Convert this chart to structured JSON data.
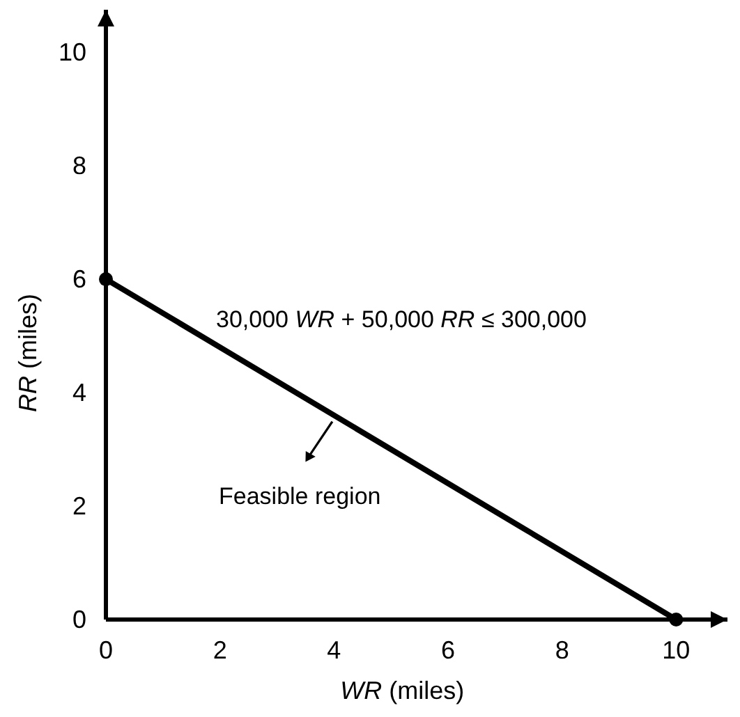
{
  "chart_data": {
    "type": "line",
    "xlabel": "WR (miles)",
    "ylabel": "RR (miles)",
    "x": [
      0,
      10
    ],
    "series": [
      {
        "color": "#000000",
        "values": [
          6,
          0
        ]
      }
    ],
    "marker": "circle",
    "line_style": "solid",
    "grid": false,
    "xlim": [
      0,
      10.9
    ],
    "ylim": [
      0,
      10.75
    ],
    "xticks": [
      0,
      2,
      4,
      6,
      8,
      10
    ],
    "yticks": [
      0,
      2,
      4,
      6,
      8,
      10
    ],
    "annotations": [
      "30,000 WR + 50,000 RR ≤ 300,000",
      "Feasible region"
    ]
  }
}
